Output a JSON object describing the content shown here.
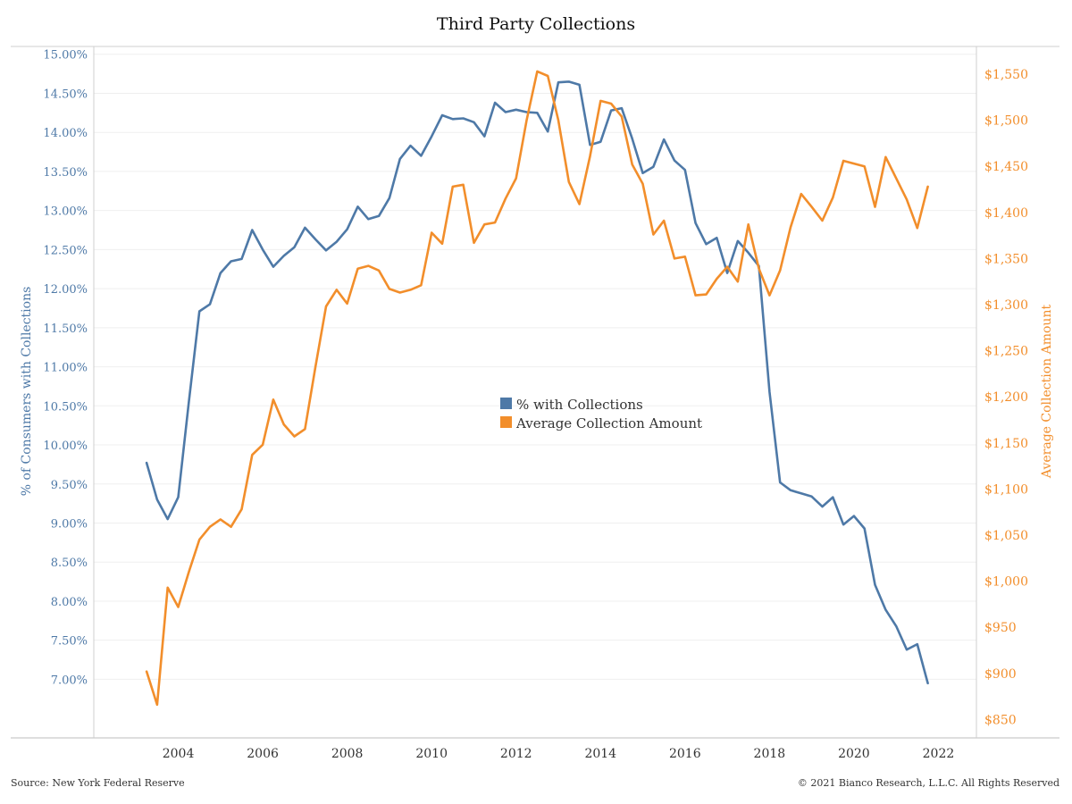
{
  "footer": {
    "source": "Source: New York Federal Reserve",
    "copyright": "© 2021 Bianco Research, L.L.C. All Rights Reserved"
  },
  "chart_data": {
    "type": "line",
    "title": "Third Party Collections",
    "y_left_label": "% of Consumers with Collections",
    "y_right_label": "Average Collection Amount",
    "y_left_ticks": [
      "7.00%",
      "7.50%",
      "8.00%",
      "8.50%",
      "9.00%",
      "9.50%",
      "10.00%",
      "10.50%",
      "11.00%",
      "11.50%",
      "12.00%",
      "12.50%",
      "13.00%",
      "13.50%",
      "14.00%",
      "14.50%",
      "15.00%"
    ],
    "y_right_ticks": [
      "$850",
      "$900",
      "$950",
      "$1,000",
      "$1,050",
      "$1,100",
      "$1,150",
      "$1,200",
      "$1,250",
      "$1,300",
      "$1,350",
      "$1,400",
      "$1,450",
      "$1,500",
      "$1,550"
    ],
    "x_ticks": [
      "2004",
      "2006",
      "2008",
      "2010",
      "2012",
      "2014",
      "2016",
      "2018",
      "2020",
      "2022"
    ],
    "y_left_range": [
      6.25,
      15.1
    ],
    "y_right_range": [
      830,
      1580
    ],
    "x_range": [
      2002.0,
      2022.9
    ],
    "grid": true,
    "legend_position": "center",
    "colors": {
      "pct": "#4e79a7",
      "amount": "#f28e2b"
    },
    "series": [
      {
        "name": "% with Collections",
        "axis": "left",
        "x": [
          2003.25,
          2003.5,
          2003.75,
          2004.0,
          2004.25,
          2004.5,
          2004.75,
          2005.0,
          2005.25,
          2005.5,
          2005.75,
          2006.0,
          2006.25,
          2006.5,
          2006.75,
          2007.0,
          2007.25,
          2007.5,
          2007.75,
          2008.0,
          2008.25,
          2008.5,
          2008.75,
          2009.0,
          2009.25,
          2009.5,
          2009.75,
          2010.0,
          2010.25,
          2010.5,
          2010.75,
          2011.0,
          2011.25,
          2011.5,
          2011.75,
          2012.0,
          2012.25,
          2012.5,
          2012.75,
          2013.0,
          2013.25,
          2013.5,
          2013.75,
          2014.0,
          2014.25,
          2014.5,
          2014.75,
          2015.0,
          2015.25,
          2015.5,
          2015.75,
          2016.0,
          2016.25,
          2016.5,
          2016.75,
          2017.0,
          2017.25,
          2017.5,
          2017.75,
          2018.0,
          2018.25,
          2018.5,
          2018.75,
          2019.0,
          2019.25,
          2019.5,
          2019.75,
          2020.0,
          2020.25,
          2020.5,
          2020.75,
          2021.0,
          2021.25,
          2021.5,
          2021.75
        ],
        "values": [
          9.77,
          9.3,
          9.05,
          9.33,
          10.55,
          11.71,
          11.8,
          12.2,
          12.35,
          12.38,
          12.75,
          12.5,
          12.28,
          12.42,
          12.53,
          12.78,
          12.63,
          12.49,
          12.6,
          12.76,
          13.05,
          12.89,
          12.93,
          13.16,
          13.66,
          13.83,
          13.7,
          13.95,
          14.22,
          14.17,
          14.18,
          14.13,
          13.95,
          14.38,
          14.26,
          14.29,
          14.26,
          14.25,
          14.01,
          14.64,
          14.65,
          14.61,
          13.84,
          13.88,
          14.28,
          14.31,
          13.92,
          13.48,
          13.56,
          13.91,
          13.64,
          13.52,
          12.84,
          12.57,
          12.65,
          12.2,
          12.61,
          12.46,
          12.29,
          10.68,
          9.52,
          9.42,
          9.38,
          9.34,
          9.21,
          9.33,
          8.98,
          9.09,
          8.93,
          8.21,
          7.89,
          7.68,
          7.38,
          7.45,
          6.95
        ]
      },
      {
        "name": "Average Collection Amount",
        "axis": "right",
        "x": [
          2003.25,
          2003.5,
          2003.75,
          2004.0,
          2004.25,
          2004.5,
          2004.75,
          2005.0,
          2005.25,
          2005.5,
          2005.75,
          2006.0,
          2006.25,
          2006.5,
          2006.75,
          2007.0,
          2007.25,
          2007.5,
          2007.75,
          2008.0,
          2008.25,
          2008.5,
          2008.75,
          2009.0,
          2009.25,
          2009.5,
          2009.75,
          2010.0,
          2010.25,
          2010.5,
          2010.75,
          2011.0,
          2011.25,
          2011.5,
          2011.75,
          2012.0,
          2012.25,
          2012.5,
          2012.75,
          2013.0,
          2013.25,
          2013.5,
          2013.75,
          2014.0,
          2014.25,
          2014.5,
          2014.75,
          2015.0,
          2015.25,
          2015.5,
          2015.75,
          2016.0,
          2016.25,
          2016.5,
          2016.75,
          2017.0,
          2017.25,
          2017.5,
          2017.75,
          2018.0,
          2018.25,
          2018.5,
          2018.75,
          2019.0,
          2019.25,
          2019.5,
          2019.75,
          2020.0,
          2020.25,
          2020.5,
          2020.75,
          2021.0,
          2021.25,
          2021.5,
          2021.75
        ],
        "values": [
          902,
          866,
          993,
          972,
          1010,
          1045,
          1059,
          1067,
          1059,
          1078,
          1137,
          1148,
          1197,
          1170,
          1157,
          1165,
          1233,
          1298,
          1316,
          1301,
          1339,
          1342,
          1337,
          1317,
          1313,
          1316,
          1321,
          1378,
          1366,
          1428,
          1430,
          1367,
          1387,
          1389,
          1415,
          1437,
          1500,
          1553,
          1548,
          1500,
          1433,
          1409,
          1461,
          1521,
          1518,
          1504,
          1452,
          1431,
          1376,
          1391,
          1350,
          1352,
          1310,
          1311,
          1328,
          1341,
          1325,
          1387,
          1339,
          1310,
          1337,
          1384,
          1420,
          1406,
          1391,
          1416,
          1456,
          1453,
          1450,
          1406,
          1460,
          1437,
          1414,
          1383,
          1428
        ]
      }
    ]
  }
}
